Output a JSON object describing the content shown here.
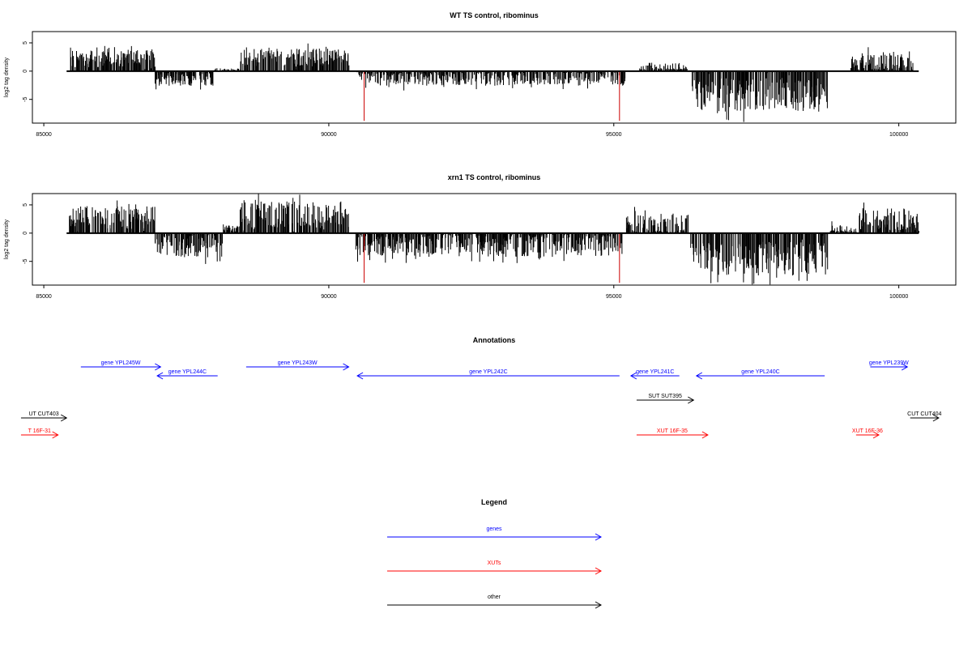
{
  "tracks": [
    {
      "type": "bar",
      "title": "WT TS control, ribominus",
      "ylabel": "log2 tag density",
      "xlim": [
        84800,
        101000
      ],
      "ylim": [
        -9.2,
        7
      ],
      "xticks": [
        85000,
        90000,
        95000,
        100000
      ],
      "yticks": [
        -5,
        0,
        5
      ],
      "baseline": [
        85400,
        100350
      ],
      "red_marks": [
        {
          "x": 90620,
          "y": -8.8
        },
        {
          "x": 95100,
          "y": -8.8
        }
      ],
      "segments": [
        {
          "from": 85450,
          "to": 86950,
          "base": 2.2,
          "amp": 1.5,
          "sign": 1
        },
        {
          "from": 86950,
          "to": 88000,
          "base": 1.4,
          "amp": 1.2,
          "sign": -1
        },
        {
          "from": 88000,
          "to": 88450,
          "base": 0.3,
          "amp": 0.2,
          "sign": 1
        },
        {
          "from": 88450,
          "to": 90350,
          "base": 2.4,
          "amp": 1.6,
          "sign": 1
        },
        {
          "from": 90500,
          "to": 95200,
          "base": 1.2,
          "amp": 1.4,
          "sign": -1
        },
        {
          "from": 95450,
          "to": 96300,
          "base": 0.4,
          "amp": 1.2,
          "sign": 1
        },
        {
          "from": 96350,
          "to": 98750,
          "base": 4.2,
          "amp": 3.0,
          "sign": -1
        },
        {
          "from": 99150,
          "to": 100250,
          "base": 1.7,
          "amp": 1.8,
          "sign": 1
        }
      ]
    },
    {
      "type": "bar",
      "title": "xrn1 TS control, ribominus",
      "ylabel": "log2 tag density",
      "xlim": [
        84800,
        101000
      ],
      "ylim": [
        -9.2,
        7
      ],
      "xticks": [
        85000,
        90000,
        95000,
        100000
      ],
      "yticks": [
        -5,
        0,
        5
      ],
      "baseline": [
        85400,
        100350
      ],
      "red_marks": [
        {
          "x": 90620,
          "y": -8.8
        },
        {
          "x": 95100,
          "y": -8.8
        }
      ],
      "segments": [
        {
          "from": 85450,
          "to": 86950,
          "base": 2.8,
          "amp": 2.0,
          "sign": 1
        },
        {
          "from": 86950,
          "to": 88150,
          "base": 2.3,
          "amp": 2.0,
          "sign": -1
        },
        {
          "from": 88150,
          "to": 88450,
          "base": 0.8,
          "amp": 0.6,
          "sign": 1
        },
        {
          "from": 88450,
          "to": 90350,
          "base": 3.2,
          "amp": 2.4,
          "sign": 1
        },
        {
          "from": 90450,
          "to": 95150,
          "base": 2.2,
          "amp": 2.0,
          "sign": -1
        },
        {
          "from": 95200,
          "to": 96300,
          "base": 1.5,
          "amp": 2.0,
          "sign": 1
        },
        {
          "from": 96350,
          "to": 98750,
          "base": 4.5,
          "amp": 3.0,
          "sign": -1
        },
        {
          "from": 98800,
          "to": 99250,
          "base": 0.5,
          "amp": 1.0,
          "sign": 1
        },
        {
          "from": 99300,
          "to": 100350,
          "base": 2.4,
          "amp": 2.0,
          "sign": 1
        }
      ]
    }
  ],
  "annotations": {
    "title": "Annotations",
    "items": [
      {
        "label": "gene YPL245W",
        "from": 85650,
        "to": 87050,
        "dir": "right",
        "row": 0,
        "color": "#0000ff"
      },
      {
        "label": "gene YPL244C",
        "from": 86990,
        "to": 88050,
        "dir": "left",
        "row": 1,
        "color": "#0000ff"
      },
      {
        "label": "gene YPL243W",
        "from": 88550,
        "to": 90350,
        "dir": "right",
        "row": 0,
        "color": "#0000ff"
      },
      {
        "label": "gene YPL242C",
        "from": 90500,
        "to": 95100,
        "dir": "left",
        "row": 1,
        "color": "#0000ff"
      },
      {
        "label": "gene YPL241C",
        "from": 95300,
        "to": 96150,
        "dir": "left",
        "row": 1,
        "color": "#0000ff"
      },
      {
        "label": "gene YPL240C",
        "from": 96450,
        "to": 98700,
        "dir": "left",
        "row": 1,
        "color": "#0000ff"
      },
      {
        "label": "gene YPL239W",
        "from": 99500,
        "to": 100150,
        "dir": "right",
        "row": 0,
        "color": "#0000ff"
      },
      {
        "label": "SUT SUT395",
        "from": 95400,
        "to": 96400,
        "dir": "right",
        "row": 2,
        "color": "#000000"
      },
      {
        "label": "UT CUT403",
        "from": 84600,
        "to": 85400,
        "dir": "right",
        "row": 3,
        "color": "#000000"
      },
      {
        "label": "CUT CUT404",
        "from": 100200,
        "to": 100700,
        "dir": "right",
        "row": 3,
        "color": "#000000"
      },
      {
        "label": "T 16F-31",
        "from": 84600,
        "to": 85250,
        "dir": "right",
        "row": 4,
        "color": "#ff0000"
      },
      {
        "label": "XUT 16F-35",
        "from": 95400,
        "to": 96650,
        "dir": "right",
        "row": 4,
        "color": "#ff0000"
      },
      {
        "label": "XUT 16F-36",
        "from": 99250,
        "to": 99650,
        "dir": "right",
        "row": 4,
        "color": "#ff0000"
      }
    ]
  },
  "legend": {
    "title": "Legend",
    "items": [
      {
        "label": "genes",
        "color": "#0000ff"
      },
      {
        "label": "XUTs",
        "color": "#ff0000"
      },
      {
        "label": "other",
        "color": "#000000"
      }
    ]
  }
}
